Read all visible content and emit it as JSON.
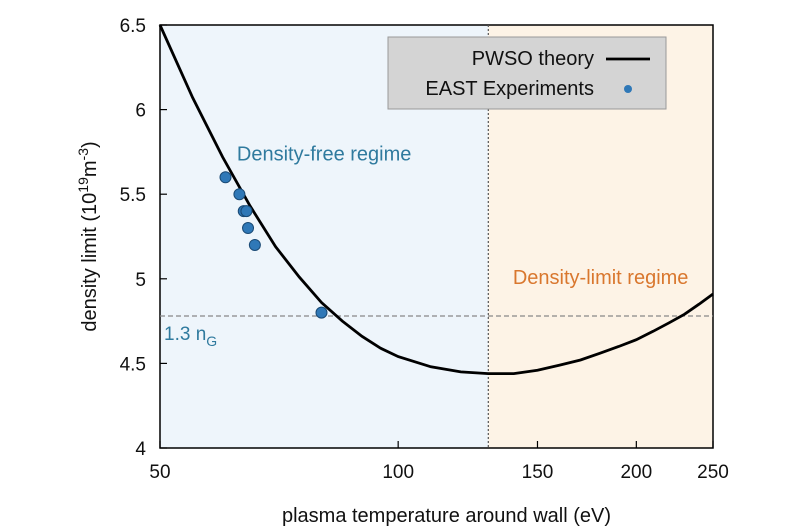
{
  "chart_data": {
    "type": "line",
    "xlabel": "plasma temperature around wall (eV)",
    "ylabel_main": "density limit (10",
    "ylabel_exp": "19",
    "ylabel_unit": "m",
    "ylabel_unit_exp": "-3",
    "ylabel_close": ")",
    "x_scale": "log",
    "xlim": [
      50,
      250
    ],
    "ylim": [
      4,
      6.5
    ],
    "x_ticks": [
      50,
      100,
      150,
      200,
      250
    ],
    "x_tick_labels": [
      "50",
      "100",
      "150",
      "200",
      "250"
    ],
    "y_ticks": [
      4,
      4.5,
      5,
      5.5,
      6,
      6.5
    ],
    "y_tick_labels": [
      "4",
      "4.5",
      "5",
      "5.5",
      "6",
      "6.5"
    ],
    "legend_position": "top-right",
    "series": [
      {
        "name": "PWSO theory",
        "kind": "line",
        "color": "#000000",
        "x": [
          50,
          55,
          60,
          65,
          70,
          75,
          80,
          85,
          90,
          95,
          100,
          110,
          120,
          130,
          140,
          150,
          160,
          170,
          180,
          190,
          200,
          210,
          220,
          230,
          240,
          250
        ],
        "y": [
          6.5,
          6.07,
          5.72,
          5.43,
          5.19,
          5.01,
          4.86,
          4.75,
          4.66,
          4.59,
          4.54,
          4.48,
          4.45,
          4.44,
          4.44,
          4.46,
          4.49,
          4.52,
          4.56,
          4.6,
          4.64,
          4.69,
          4.74,
          4.79,
          4.85,
          4.91
        ]
      },
      {
        "name": "EAST Experiments",
        "kind": "scatter",
        "color": "#2f78b7",
        "x": [
          60.5,
          63.0,
          63.8,
          64.3,
          64.6,
          65.9,
          80.0
        ],
        "y": [
          5.6,
          5.5,
          5.4,
          5.4,
          5.3,
          5.2,
          4.8
        ]
      }
    ],
    "reference_line": {
      "y": 4.78,
      "label_main": "1.3 n",
      "label_sub": "G",
      "color": "#888888"
    },
    "boundary_line": {
      "x": 130,
      "color": "#555555"
    },
    "regions": [
      {
        "label": "Density-free regime",
        "x_from": 50,
        "x_to": 130,
        "color": "#eef5fb",
        "text_color": "#2f7a9e"
      },
      {
        "label": "Density-limit regime",
        "x_from": 130,
        "x_to": 250,
        "color": "#fdf3e6",
        "text_color": "#d9772e"
      }
    ]
  }
}
